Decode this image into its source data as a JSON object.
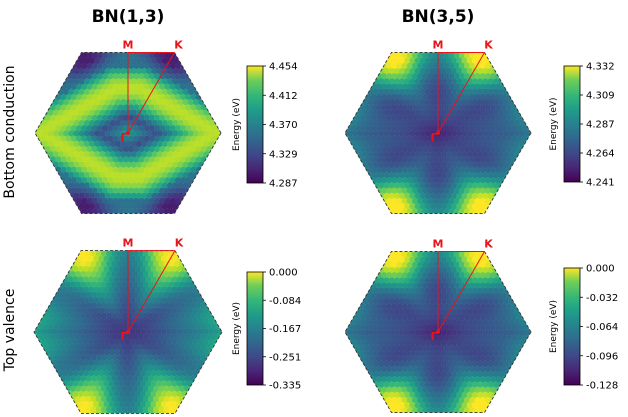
{
  "column_titles": [
    "BN(1,3)",
    "BN(3,5)"
  ],
  "row_titles": [
    "Bottom conduction",
    "Top valence"
  ],
  "colors": {
    "kpath": "#e8141a",
    "colormap": "viridis"
  },
  "chart_data": [
    {
      "type": "heatmap",
      "title": "BN(1,3)",
      "row": "Bottom conduction",
      "pattern": "ring",
      "kpoints": [
        "M",
        "K",
        "Γ"
      ],
      "colorbar": {
        "label": "Energy (eV)",
        "ticks": [
          "4.454",
          "4.412",
          "4.370",
          "4.329",
          "4.287"
        ],
        "range": [
          4.287,
          4.454
        ]
      }
    },
    {
      "type": "heatmap",
      "title": "BN(3,5)",
      "row": "Bottom conduction",
      "pattern": "center_min_vertex_max",
      "kpoints": [
        "M",
        "K",
        "Γ"
      ],
      "colorbar": {
        "label": "Energy (eV)",
        "ticks": [
          "4.332",
          "4.309",
          "4.287",
          "4.264",
          "4.241"
        ],
        "range": [
          4.241,
          4.332
        ]
      }
    },
    {
      "type": "heatmap",
      "title": "BN(1,3)",
      "row": "Top valence",
      "pattern": "vertex_max_center_min",
      "kpoints": [
        "M",
        "K",
        "Γ"
      ],
      "colorbar": {
        "label": "Energy (eV)",
        "ticks": [
          "0.000",
          "-0.084",
          "-0.167",
          "-0.251",
          "-0.335"
        ],
        "range": [
          -0.335,
          0.0
        ]
      }
    },
    {
      "type": "heatmap",
      "title": "BN(3,5)",
      "row": "Top valence",
      "pattern": "center_min_vertex_max",
      "kpoints": [
        "M",
        "K",
        "Γ"
      ],
      "colorbar": {
        "label": "Energy (eV)",
        "ticks": [
          "0.000",
          "-0.032",
          "-0.064",
          "-0.096",
          "-0.128"
        ],
        "range": [
          -0.128,
          0.0
        ]
      }
    }
  ]
}
